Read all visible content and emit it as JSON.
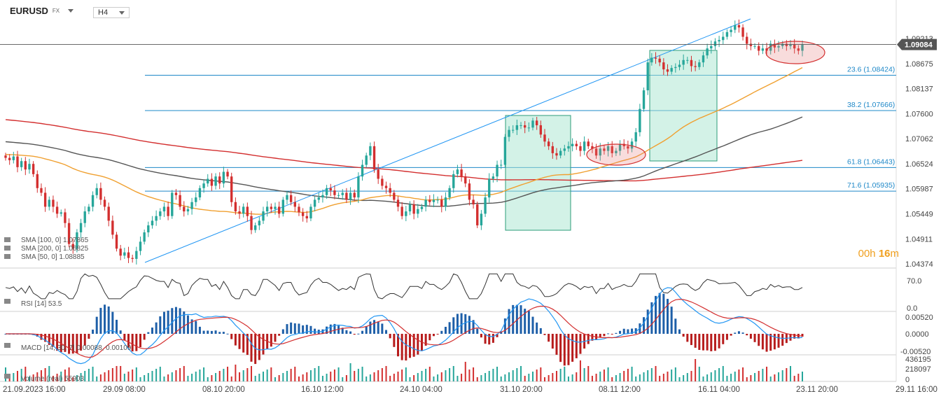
{
  "header": {
    "symbol": "EURUSD",
    "market": "FX",
    "timeframe": "H4"
  },
  "timer": {
    "hours": "00",
    "h_suffix": "h",
    "minutes": "16",
    "m_suffix": "m"
  },
  "colors": {
    "up": "#26a69a",
    "down": "#d32f2f",
    "sma100": "#555555",
    "sma200": "#d32f2f",
    "sma50": "#f0a030",
    "fib": "#1e88c8",
    "trend": "#2196f3",
    "rsi": "#333333",
    "macd": "#2196f3",
    "signal": "#d32f2f"
  },
  "chart_data": {
    "type": "candlestick",
    "symbol": "EURUSD",
    "timeframe": "H4",
    "price_axis_ticks": [
      "1.09213",
      "1.08675",
      "1.08137",
      "1.07600",
      "1.07062",
      "1.06524",
      "1.05987",
      "1.05449",
      "1.04911",
      "1.04374"
    ],
    "current_price": "1.09084",
    "time_axis_ticks": [
      "21.09.2023 16:00",
      "29.09 08:00",
      "08.10 20:00",
      "16.10 12:00",
      "24.10 04:00",
      "31.10 20:00",
      "08.11 12:00",
      "16.11 04:00",
      "23.11 20:00",
      "29.11 16:00"
    ],
    "fibonacci": [
      {
        "label": "23.6 (1.08424)",
        "level": 1.08424
      },
      {
        "label": "38.2 (1.07666)",
        "level": 1.07666
      },
      {
        "label": "61.8 (1.06443)",
        "level": 1.06443
      },
      {
        "label": "71.6 (1.05935)",
        "level": 1.05935
      }
    ],
    "close_prices": [
      1.0665,
      1.066,
      1.0668,
      1.0645,
      1.0658,
      1.064,
      1.0652,
      1.063,
      1.06,
      1.059,
      1.056,
      1.0575,
      1.056,
      1.0545,
      1.0548,
      1.0525,
      1.048,
      1.047,
      1.0505,
      1.0525,
      1.055,
      1.056,
      1.0585,
      1.06,
      1.0575,
      1.056,
      1.053,
      1.05,
      1.047,
      1.0455,
      1.0462,
      1.045,
      1.0448,
      1.0465,
      1.0485,
      1.0505,
      1.052,
      1.053,
      1.054,
      1.055,
      1.056,
      1.054,
      1.059,
      1.0585,
      1.056,
      1.055,
      1.0555,
      1.057,
      1.058,
      1.06,
      1.061,
      1.062,
      1.0605,
      1.0625,
      1.061,
      1.0635,
      1.0625,
      1.057,
      1.055,
      1.0545,
      1.056,
      1.054,
      1.051,
      1.052,
      1.053,
      1.055,
      1.056,
      1.0555,
      1.056,
      1.0545,
      1.0575,
      1.0585,
      1.057,
      1.056,
      1.0548,
      1.054,
      1.0535,
      1.056,
      1.0575,
      1.058,
      1.0585,
      1.06,
      1.0595,
      1.0585,
      1.0585,
      1.059,
      1.0575,
      1.059,
      1.058,
      1.0625,
      1.065,
      1.067,
      1.069,
      1.064,
      1.062,
      1.0605,
      1.06,
      1.059,
      1.0575,
      1.056,
      1.054,
      1.055,
      1.0565,
      1.0545,
      1.0555,
      1.056,
      1.0575,
      1.057,
      1.0575,
      1.0575,
      1.056,
      1.058,
      1.06,
      1.063,
      1.064,
      1.0625,
      1.061,
      1.0575,
      1.0565,
      1.052,
      1.0545,
      1.058,
      1.062,
      1.0625,
      1.065,
      1.065,
      1.071,
      1.0725,
      1.0725,
      1.0735,
      1.0735,
      1.073,
      1.073,
      1.0745,
      1.0735,
      1.0715,
      1.07,
      1.069,
      1.0675,
      1.067,
      1.068,
      1.0685,
      1.069,
      1.0695,
      1.069,
      1.068,
      1.07,
      1.069,
      1.0685,
      1.067,
      1.0685,
      1.068,
      1.069,
      1.0675,
      1.068,
      1.0695,
      1.069,
      1.0685,
      1.07,
      1.072,
      1.077,
      1.081,
      1.087,
      1.088,
      1.0878,
      1.087,
      1.0855,
      1.085,
      1.0858,
      1.086,
      1.0865,
      1.0875,
      1.0875,
      1.0862,
      1.086,
      1.087,
      1.0885,
      1.09,
      1.0905,
      1.0915,
      1.0918,
      1.0925,
      1.0935,
      1.094,
      1.095,
      1.0945,
      1.0925,
      1.091,
      1.0905,
      1.0905,
      1.0895,
      1.09,
      1.0895,
      1.091,
      1.0902,
      1.0905,
      1.091,
      1.0905,
      1.0908,
      1.09,
      1.0895,
      1.0908
    ],
    "sma50_value": "1.08885",
    "sma100_value": "1.07865",
    "sma200_value": "1.06825",
    "indicators": {
      "sma": [
        {
          "label": "SMA [100, 0]",
          "value": "1.07865"
        },
        {
          "label": "SMA [200, 0]",
          "value": "1.06825"
        },
        {
          "label": "SMA [50, 0]",
          "value": "1.08885"
        }
      ],
      "rsi": {
        "label": "RSI [14]",
        "value": "53.5",
        "levels": [
          "70.0",
          "0.0"
        ]
      },
      "macd": {
        "label": "MACD [14, 30, 7]",
        "values": [
          "0.00088",
          "0.00109"
        ],
        "axis": [
          "0.00520",
          "0.0000",
          "-0.00520"
        ]
      },
      "volume": {
        "label": "Volume (real)",
        "value": "55903",
        "axis": [
          "436195",
          "218097",
          "0"
        ]
      }
    }
  }
}
